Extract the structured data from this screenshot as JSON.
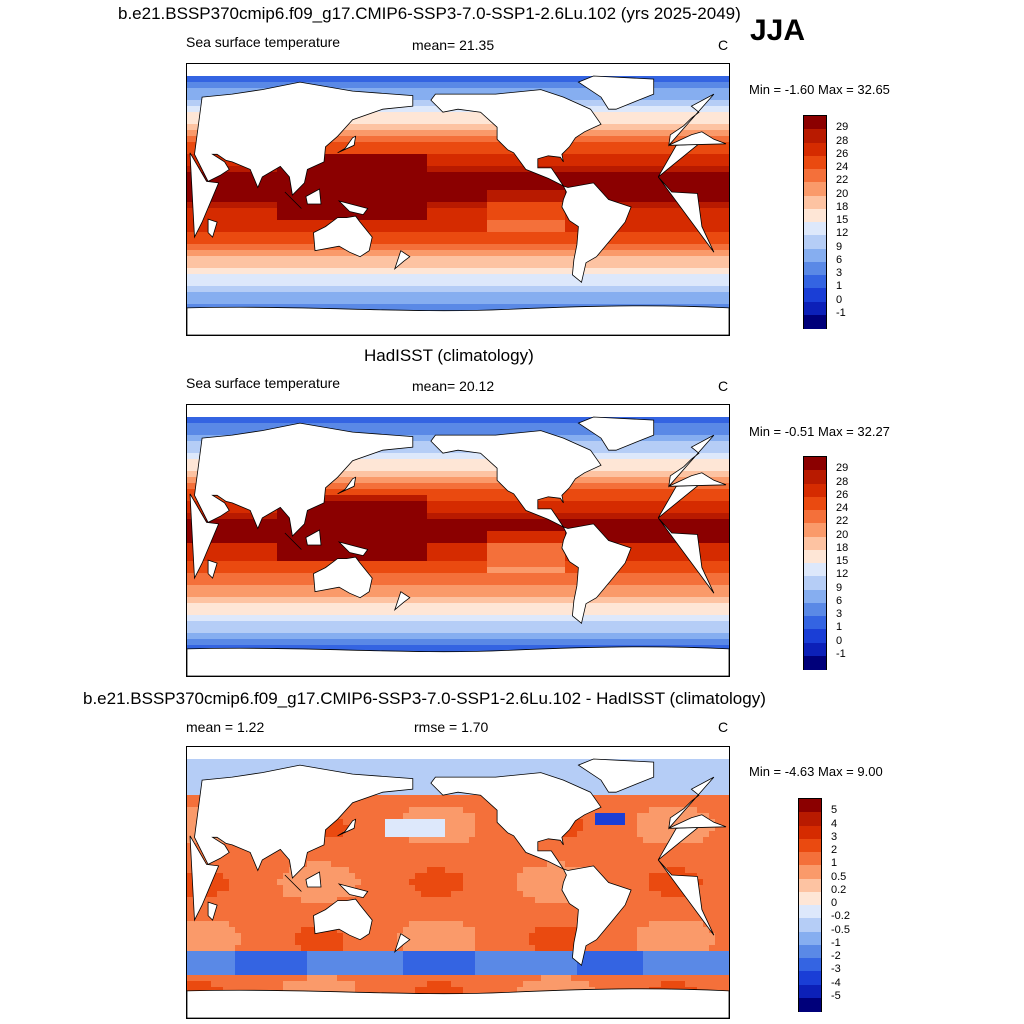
{
  "season": "JJA",
  "panels": [
    {
      "title": "b.e21.BSSP370cmip6.f09_g17.CMIP6-SSP3-7.0-SSP1-2.6Lu.102 (yrs 2025-2049)",
      "left_label": "Sea surface temperature",
      "center_label": "mean=  21.35",
      "right_label": "C",
      "minmax": "Min =  -1.60 Max =  32.65",
      "colorbar": {
        "ticks": [
          "29",
          "28",
          "26",
          "24",
          "22",
          "20",
          "18",
          "15",
          "12",
          "9",
          "6",
          "3",
          "1",
          "0",
          "-1"
        ],
        "colors": [
          "#8b0000",
          "#b81a00",
          "#d52b00",
          "#ea4a10",
          "#f4703a",
          "#fa9a6a",
          "#fdc3a2",
          "#fee6d6",
          "#dde8fb",
          "#b5cdf6",
          "#86aef0",
          "#5a89e6",
          "#3464e2",
          "#1a3ed6",
          "#0c20b8",
          "#00007a"
        ]
      },
      "field": "sst_model"
    },
    {
      "title": "HadISST (climatology)",
      "left_label": "Sea surface temperature",
      "center_label": "mean=  20.12",
      "right_label": "C",
      "minmax": "Min =  -0.51 Max =  32.27",
      "colorbar": {
        "ticks": [
          "29",
          "28",
          "26",
          "24",
          "22",
          "20",
          "18",
          "15",
          "12",
          "9",
          "6",
          "3",
          "1",
          "0",
          "-1"
        ],
        "colors": [
          "#8b0000",
          "#b81a00",
          "#d52b00",
          "#ea4a10",
          "#f4703a",
          "#fa9a6a",
          "#fdc3a2",
          "#fee6d6",
          "#dde8fb",
          "#b5cdf6",
          "#86aef0",
          "#5a89e6",
          "#3464e2",
          "#1a3ed6",
          "#0c20b8",
          "#00007a"
        ]
      },
      "field": "sst_obs"
    },
    {
      "title": "b.e21.BSSP370cmip6.f09_g17.CMIP6-SSP3-7.0-SSP1-2.6Lu.102 - HadISST (climatology)",
      "left_label": "mean =   1.22",
      "center_label": "rmse =   1.70",
      "right_label": "C",
      "minmax": "Min =  -4.63 Max =   9.00",
      "colorbar": {
        "ticks": [
          "5",
          "4",
          "3",
          "2",
          "1",
          "0.5",
          "0.2",
          "0",
          "-0.2",
          "-0.5",
          "-1",
          "-2",
          "-3",
          "-4",
          "-5"
        ],
        "colors": [
          "#8b0000",
          "#b81a00",
          "#d52b00",
          "#ea4a10",
          "#f4703a",
          "#fa9a6a",
          "#fdc3a2",
          "#fee6d6",
          "#dde8fb",
          "#b5cdf6",
          "#86aef0",
          "#5a89e6",
          "#3464e2",
          "#1a3ed6",
          "#0c20b8",
          "#00007a"
        ]
      },
      "field": "sst_diff"
    }
  ]
}
